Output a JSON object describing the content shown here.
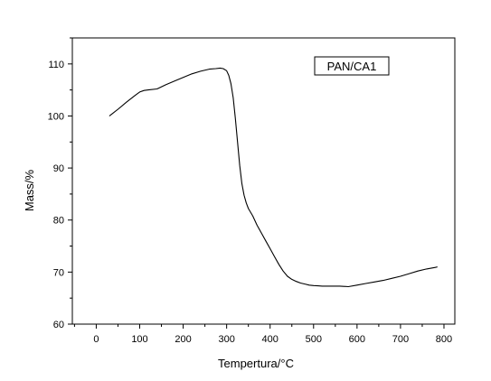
{
  "chart_data": {
    "type": "line",
    "xlabel": "Tempertura/°C",
    "ylabel": "Mass/%",
    "xlim": [
      -55,
      825
    ],
    "ylim": [
      60,
      115
    ],
    "x_ticks": [
      0,
      100,
      200,
      300,
      400,
      500,
      600,
      700,
      800
    ],
    "y_ticks": [
      60,
      70,
      80,
      90,
      100,
      110
    ],
    "grid": false,
    "legend_placement": "top-right",
    "series": [
      {
        "name": "PAN/CA1",
        "color": "#000000",
        "x": [
          30,
          50,
          70,
          90,
          100,
          110,
          120,
          140,
          160,
          180,
          200,
          220,
          240,
          260,
          275,
          285,
          292,
          300,
          305,
          310,
          315,
          320,
          325,
          330,
          335,
          340,
          345,
          350,
          360,
          370,
          380,
          390,
          400,
          410,
          420,
          430,
          440,
          450,
          460,
          470,
          480,
          490,
          500,
          510,
          520,
          540,
          560,
          580,
          600,
          620,
          640,
          660,
          680,
          700,
          720,
          740,
          760,
          780,
          785
        ],
        "y": [
          100.0,
          101.3,
          102.7,
          104.0,
          104.6,
          104.9,
          105.0,
          105.2,
          106.0,
          106.7,
          107.4,
          108.1,
          108.6,
          109.0,
          109.1,
          109.2,
          109.1,
          108.7,
          107.8,
          106.2,
          103.5,
          99.5,
          95.0,
          90.5,
          87.0,
          84.8,
          83.3,
          82.2,
          80.8,
          79.0,
          77.5,
          76.0,
          74.5,
          73.0,
          71.5,
          70.2,
          69.2,
          68.6,
          68.2,
          67.9,
          67.7,
          67.5,
          67.4,
          67.35,
          67.3,
          67.3,
          67.3,
          67.2,
          67.5,
          67.8,
          68.1,
          68.4,
          68.8,
          69.2,
          69.7,
          70.2,
          70.6,
          70.9,
          71.0
        ]
      }
    ]
  }
}
